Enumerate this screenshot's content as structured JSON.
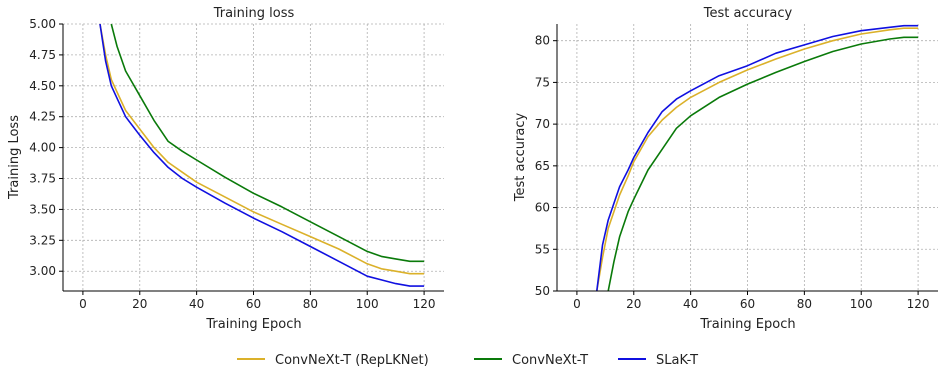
{
  "chart_data": [
    {
      "type": "line",
      "title": "Training loss",
      "xlabel": "Training Epoch",
      "ylabel": "Training Loss",
      "xlim": [
        -7,
        127
      ],
      "ylim": [
        2.84,
        5.0
      ],
      "xticks": [
        0,
        20,
        40,
        60,
        80,
        100,
        120
      ],
      "yticks": [
        3.0,
        3.25,
        3.5,
        3.75,
        4.0,
        4.25,
        4.5,
        4.75,
        5.0
      ],
      "ytick_labels": [
        "3.00",
        "3.25",
        "3.50",
        "3.75",
        "4.00",
        "4.25",
        "4.50",
        "4.75",
        "5.00"
      ],
      "grid": true,
      "series": [
        {
          "name": "ConvNeXt-T (RepLKNet)",
          "color": "#dbb12a",
          "x": [
            6,
            8,
            10,
            12,
            15,
            20,
            25,
            30,
            35,
            40,
            50,
            60,
            70,
            80,
            90,
            100,
            105,
            110,
            115,
            120
          ],
          "y": [
            5.0,
            4.75,
            4.55,
            4.45,
            4.3,
            4.15,
            4.0,
            3.88,
            3.8,
            3.72,
            3.6,
            3.48,
            3.38,
            3.28,
            3.18,
            3.06,
            3.02,
            3.0,
            2.98,
            2.98
          ]
        },
        {
          "name": "ConvNeXt-T",
          "color": "#0a7a0a",
          "x": [
            10,
            12,
            15,
            20,
            25,
            30,
            35,
            40,
            50,
            60,
            70,
            80,
            90,
            100,
            105,
            110,
            115,
            120
          ],
          "y": [
            5.0,
            4.82,
            4.62,
            4.42,
            4.22,
            4.05,
            3.97,
            3.9,
            3.76,
            3.63,
            3.52,
            3.4,
            3.28,
            3.16,
            3.12,
            3.1,
            3.08,
            3.08
          ]
        },
        {
          "name": "SLaK-T",
          "color": "#1010e0",
          "x": [
            6,
            8,
            10,
            12,
            15,
            20,
            25,
            30,
            35,
            40,
            50,
            60,
            70,
            80,
            90,
            100,
            105,
            110,
            115,
            120
          ],
          "y": [
            5.0,
            4.7,
            4.5,
            4.4,
            4.25,
            4.1,
            3.96,
            3.84,
            3.75,
            3.68,
            3.55,
            3.43,
            3.32,
            3.2,
            3.08,
            2.96,
            2.93,
            2.9,
            2.88,
            2.88
          ]
        }
      ]
    },
    {
      "type": "line",
      "title": "Test accuracy",
      "xlabel": "Training Epoch",
      "ylabel": "Test accuracy",
      "xlim": [
        -7,
        127
      ],
      "ylim": [
        50,
        82
      ],
      "xticks": [
        0,
        20,
        40,
        60,
        80,
        100,
        120
      ],
      "yticks": [
        50,
        55,
        60,
        65,
        70,
        75,
        80
      ],
      "ytick_labels": [
        "50",
        "55",
        "60",
        "65",
        "70",
        "75",
        "80"
      ],
      "grid": true,
      "series": [
        {
          "name": "ConvNeXt-T (RepLKNet)",
          "color": "#dbb12a",
          "x": [
            7,
            9,
            11,
            13,
            15,
            18,
            20,
            25,
            30,
            35,
            40,
            50,
            60,
            70,
            80,
            90,
            100,
            110,
            115,
            120
          ],
          "y": [
            50,
            54,
            57.5,
            59.5,
            61.5,
            63.8,
            65.5,
            68.5,
            70.5,
            72,
            73.2,
            75,
            76.5,
            77.8,
            79,
            80,
            80.8,
            81.3,
            81.5,
            81.5
          ]
        },
        {
          "name": "ConvNeXt-T",
          "color": "#0a7a0a",
          "x": [
            11,
            13,
            15,
            18,
            20,
            25,
            30,
            35,
            40,
            50,
            60,
            70,
            80,
            90,
            100,
            110,
            115,
            120
          ],
          "y": [
            50,
            53.5,
            56.5,
            59.5,
            61,
            64.5,
            67,
            69.5,
            71,
            73.2,
            74.8,
            76.2,
            77.5,
            78.7,
            79.6,
            80.2,
            80.4,
            80.4
          ]
        },
        {
          "name": "SLaK-T",
          "color": "#1010e0",
          "x": [
            7,
            9,
            11,
            13,
            15,
            18,
            20,
            25,
            30,
            35,
            40,
            50,
            60,
            70,
            80,
            90,
            100,
            110,
            115,
            120
          ],
          "y": [
            50,
            55.5,
            58.5,
            60.5,
            62.5,
            64.5,
            66,
            69,
            71.5,
            73,
            74,
            75.8,
            77,
            78.5,
            79.5,
            80.5,
            81.2,
            81.6,
            81.8,
            81.8
          ]
        }
      ]
    }
  ],
  "legend": {
    "placement": "bottom-center",
    "items": [
      {
        "label": "ConvNeXt-T (RepLKNet)",
        "color": "#dbb12a"
      },
      {
        "label": "ConvNeXt-T",
        "color": "#0a7a0a"
      },
      {
        "label": "SLaK-T",
        "color": "#1010e0"
      }
    ]
  }
}
